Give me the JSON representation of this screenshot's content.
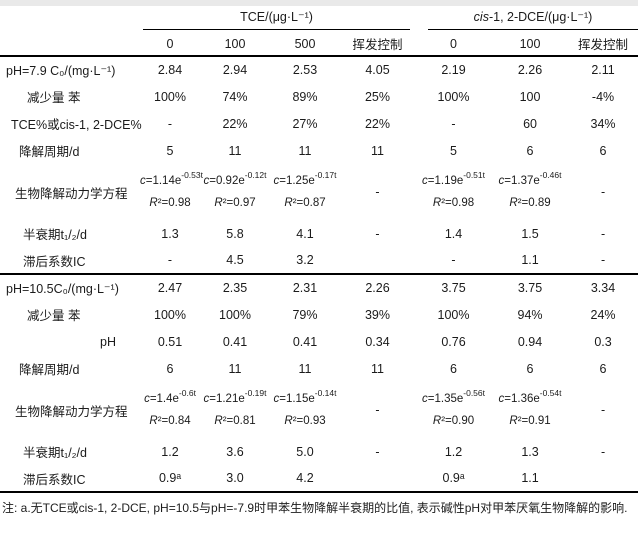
{
  "header": {
    "groups": [
      {
        "prefix": "",
        "name": "TCE/(μg·L⁻¹)",
        "columns": [
          "0",
          "100",
          "500",
          "挥发控制"
        ]
      },
      {
        "prefix": "cis",
        "name": "-1, 2-DCE/(μg·L⁻¹)",
        "columns": [
          "0",
          "100",
          "挥发控制"
        ]
      }
    ]
  },
  "sections": [
    {
      "name": "pH=7.9",
      "rows": [
        {
          "label": "pH=7.9 C₀/(mg·L⁻¹)",
          "indent": 6,
          "type": "simple",
          "values": [
            "2.84",
            "2.94",
            "2.53",
            "4.05",
            "2.19",
            "2.26",
            "2.11"
          ]
        },
        {
          "label": "减少量 苯",
          "indent": 27,
          "type": "simple",
          "values": [
            "100%",
            "74%",
            "89%",
            "25%",
            "100%",
            "100",
            "-4%"
          ]
        },
        {
          "label": "TCE%或cis-1, 2-DCE%",
          "indent": 11,
          "type": "simple",
          "values": [
            "-",
            "22%",
            "27%",
            "22%",
            "-",
            "60",
            "34%"
          ]
        },
        {
          "label": "降解周期/d",
          "indent": 19,
          "type": "simple",
          "values": [
            "5",
            "11",
            "11",
            "11",
            "5",
            "6",
            "6"
          ]
        },
        {
          "label": "生物降解动力学方程",
          "indent": 15,
          "type": "equation",
          "values": [
            {
              "f": "c=1.14e",
              "k": "-0.53t",
              "r2": "R²=0.98"
            },
            {
              "f": "c=0.92e",
              "k": "-0.12t",
              "r2": "R²=0.97"
            },
            {
              "f": "c=1.25e",
              "k": "-0.17t",
              "r2": "R²=0.87"
            },
            "-",
            {
              "f": "c=1.19e",
              "k": "-0.51t",
              "r2": "R²=0.98"
            },
            {
              "f": "c=1.37e",
              "k": "-0.46t",
              "r2": "R²=0.89"
            },
            "-"
          ]
        },
        {
          "label": "半衰期t₁/₂/d",
          "indent": 23,
          "type": "simple",
          "values": [
            "1.3",
            "5.8",
            "4.1",
            "-",
            "1.4",
            "1.5",
            "-"
          ]
        },
        {
          "label": "滞后系数IC",
          "indent": 23,
          "type": "simple",
          "values": [
            "-",
            "4.5",
            "3.2",
            "",
            "-",
            "1.1",
            "-"
          ]
        }
      ]
    },
    {
      "name": "pH=10.5",
      "rows": [
        {
          "label": "pH=10.5C₀/(mg·L⁻¹)",
          "indent": 6,
          "type": "simple",
          "values": [
            "2.47",
            "2.35",
            "2.31",
            "2.26",
            "3.75",
            "3.75",
            "3.34"
          ]
        },
        {
          "label": "减少量 苯",
          "indent": 27,
          "type": "simple",
          "values": [
            "100%",
            "100%",
            "79%",
            "39%",
            "100%",
            "94%",
            "24%"
          ]
        },
        {
          "label": "pH",
          "indent": 100,
          "type": "simple",
          "values": [
            "0.51",
            "0.41",
            "0.41",
            "0.34",
            "0.76",
            "0.94",
            "0.3"
          ]
        },
        {
          "label": "降解周期/d",
          "indent": 19,
          "type": "simple",
          "values": [
            "6",
            "11",
            "11",
            "11",
            "6",
            "6",
            "6"
          ]
        },
        {
          "label": "生物降解动力学方程",
          "indent": 15,
          "type": "equation",
          "values": [
            {
              "f": "c=1.4e",
              "k": "-0.6t",
              "r2": "R²=0.84"
            },
            {
              "f": "c=1.21e",
              "k": "-0.19t",
              "r2": "R²=0.81"
            },
            {
              "f": "c=1.15e",
              "k": "-0.14t",
              "r2": "R²=0.93"
            },
            "-",
            {
              "f": "c=1.35e",
              "k": "-0.56t",
              "r2": "R²=0.90"
            },
            {
              "f": "c=1.36e",
              "k": "-0.54t",
              "r2": "R²=0.91"
            },
            "-"
          ]
        },
        {
          "label": "半衰期t₁/₂/d",
          "indent": 23,
          "type": "simple",
          "values": [
            "1.2",
            "3.6",
            "5.0",
            "-",
            "1.2",
            "1.3",
            "-"
          ]
        },
        {
          "label": "滞后系数IC",
          "indent": 23,
          "type": "simple",
          "values": [
            "0.9ᵃ",
            "3.0",
            "4.2",
            "",
            "0.9ᵃ",
            "1.1",
            ""
          ]
        }
      ]
    }
  ],
  "footnote": "注: a.无TCE或cis-1, 2-DCE, pH=10.5与pH=-7.9时甲苯生物降解半衰期的比值, 表示碱性pH对甲苯厌氧生物降解的影响."
}
